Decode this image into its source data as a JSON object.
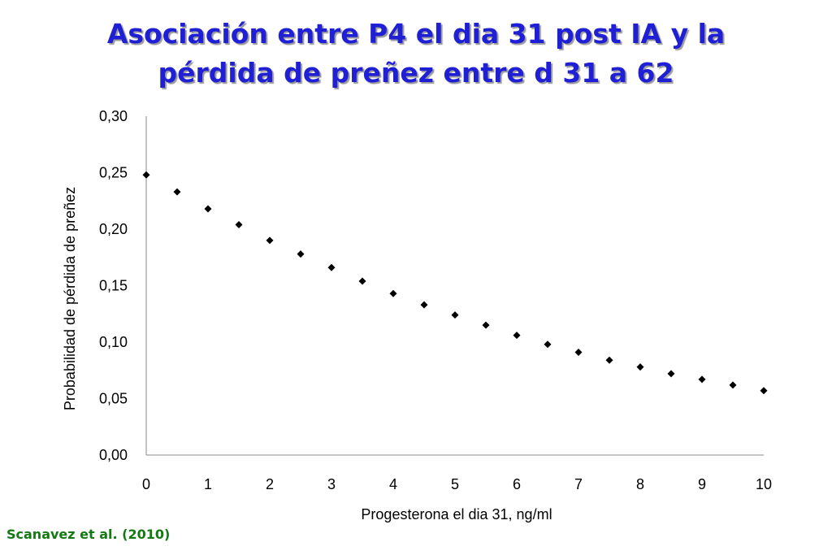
{
  "title": {
    "line1": "Asociación entre P4 el dia 31 post IA y la",
    "line2": "pérdida de preñez entre d 31 a 62"
  },
  "citation": "Scanavez et al. (2010)",
  "colors": {
    "title": "#1f1fd6",
    "citation": "#137a13",
    "points": "#000000"
  },
  "chart_data": {
    "type": "scatter",
    "xlabel": "Progesterona el dia 31, ng/ml",
    "ylabel": "Probabilidad de pérdida de preñez",
    "xlim": [
      0,
      10
    ],
    "ylim": [
      0,
      0.3
    ],
    "x_ticks": [
      0,
      1,
      2,
      3,
      4,
      5,
      6,
      7,
      8,
      9,
      10
    ],
    "x_tick_labels": [
      "0",
      "1",
      "2",
      "3",
      "4",
      "5",
      "6",
      "7",
      "8",
      "9",
      "10"
    ],
    "y_ticks": [
      0,
      0.05,
      0.1,
      0.15,
      0.2,
      0.25,
      0.3
    ],
    "y_tick_labels": [
      "0,00",
      "0,05",
      "0,10",
      "0,15",
      "0,20",
      "0,25",
      "0,30"
    ],
    "grid": false,
    "marker": "diamond",
    "points": [
      {
        "x": 0.0,
        "y": 0.248
      },
      {
        "x": 0.5,
        "y": 0.233
      },
      {
        "x": 1.0,
        "y": 0.218
      },
      {
        "x": 1.5,
        "y": 0.204
      },
      {
        "x": 2.0,
        "y": 0.19
      },
      {
        "x": 2.5,
        "y": 0.178
      },
      {
        "x": 3.0,
        "y": 0.166
      },
      {
        "x": 3.5,
        "y": 0.154
      },
      {
        "x": 4.0,
        "y": 0.143
      },
      {
        "x": 4.5,
        "y": 0.133
      },
      {
        "x": 5.0,
        "y": 0.124
      },
      {
        "x": 5.5,
        "y": 0.115
      },
      {
        "x": 6.0,
        "y": 0.106
      },
      {
        "x": 6.5,
        "y": 0.098
      },
      {
        "x": 7.0,
        "y": 0.091
      },
      {
        "x": 7.5,
        "y": 0.084
      },
      {
        "x": 8.0,
        "y": 0.078
      },
      {
        "x": 8.5,
        "y": 0.072
      },
      {
        "x": 9.0,
        "y": 0.067
      },
      {
        "x": 9.5,
        "y": 0.062
      },
      {
        "x": 10.0,
        "y": 0.057
      }
    ]
  }
}
